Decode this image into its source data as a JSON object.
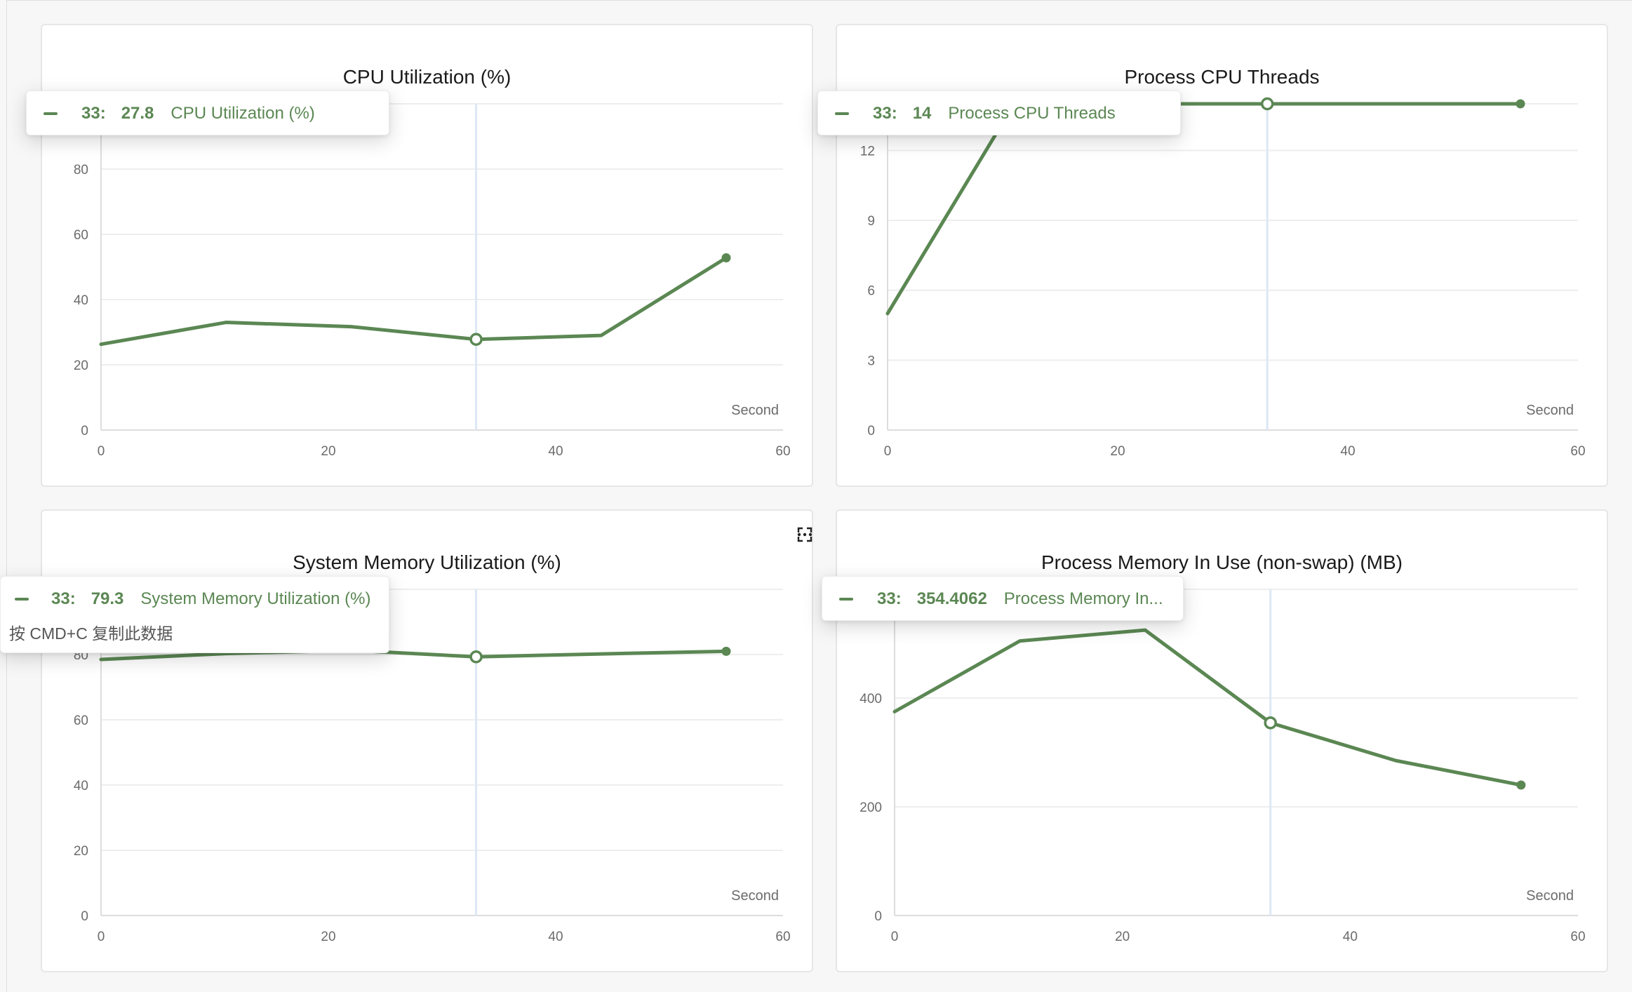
{
  "charts": [
    {
      "id": "cpu-utilization",
      "title": "CPU Utilization (%)",
      "tooltip": {
        "step": "33:",
        "value": "27.8",
        "series": "CPU Utilization (%)"
      }
    },
    {
      "id": "process-cpu-threads",
      "title": "Process CPU Threads",
      "tooltip": {
        "step": "33:",
        "value": "14",
        "series": "Process CPU Threads"
      }
    },
    {
      "id": "system-memory-utilization",
      "title": "System Memory Utilization (%)",
      "tooltip": {
        "step": "33:",
        "value": "79.3",
        "series": "System Memory Utilization (%)",
        "hint": "按 CMD+C 复制此数据"
      }
    },
    {
      "id": "process-memory-in-use",
      "title": "Process Memory In Use (non-swap) (MB)",
      "tooltip": {
        "step": "33:",
        "value": "354.4062",
        "series": "Process Memory In..."
      }
    }
  ],
  "card_tools": {
    "fullscreen_icon": "expand-icon",
    "more_icon": "more-horizontal-icon"
  },
  "colors": {
    "series": "#5b8753",
    "crosshair": "#dce8f5",
    "grid": "#eeeeee",
    "axis": "#dddddd"
  },
  "chart_data": [
    {
      "type": "line",
      "title": "CPU Utilization (%)",
      "unit_label": "Second",
      "x": [
        0,
        11,
        22,
        33,
        44,
        55
      ],
      "y": [
        26.3,
        33.0,
        31.7,
        27.8,
        29.0,
        52.8
      ],
      "xlim": [
        0,
        60
      ],
      "ylim": [
        0,
        100
      ],
      "xticks": [
        0,
        20,
        40,
        60
      ],
      "yticks": [
        0,
        20,
        40,
        60,
        80
      ],
      "highlight_x": 33,
      "grid": true
    },
    {
      "type": "line",
      "title": "Process CPU Threads",
      "unit_label": "Second",
      "x": [
        0,
        11,
        22,
        33,
        44,
        55
      ],
      "y": [
        5,
        14,
        14,
        14,
        14,
        14
      ],
      "xlim": [
        0,
        60
      ],
      "ylim": [
        0,
        14
      ],
      "xticks": [
        0,
        20,
        40,
        60
      ],
      "yticks": [
        0,
        3,
        6,
        9,
        12
      ],
      "highlight_x": 33,
      "grid": true
    },
    {
      "type": "line",
      "title": "System Memory Utilization (%)",
      "unit_label": "Second",
      "x": [
        0,
        11,
        22,
        33,
        44,
        55
      ],
      "y": [
        78.5,
        80.3,
        81.3,
        79.3,
        80.2,
        81.0
      ],
      "xlim": [
        0,
        60
      ],
      "ylim": [
        0,
        100
      ],
      "xticks": [
        0,
        20,
        40,
        60
      ],
      "yticks": [
        0,
        20,
        40,
        60,
        80
      ],
      "highlight_x": 33,
      "grid": true
    },
    {
      "type": "line",
      "title": "Process Memory In Use (non-swap) (MB)",
      "unit_label": "Second",
      "x": [
        0,
        11,
        22,
        33,
        44,
        55
      ],
      "y": [
        375,
        505,
        525,
        354.4062,
        285,
        240
      ],
      "xlim": [
        0,
        60
      ],
      "ylim": [
        0,
        600
      ],
      "xticks": [
        0,
        20,
        40,
        60
      ],
      "yticks": [
        0,
        200,
        400
      ],
      "highlight_x": 33,
      "grid": true
    }
  ]
}
